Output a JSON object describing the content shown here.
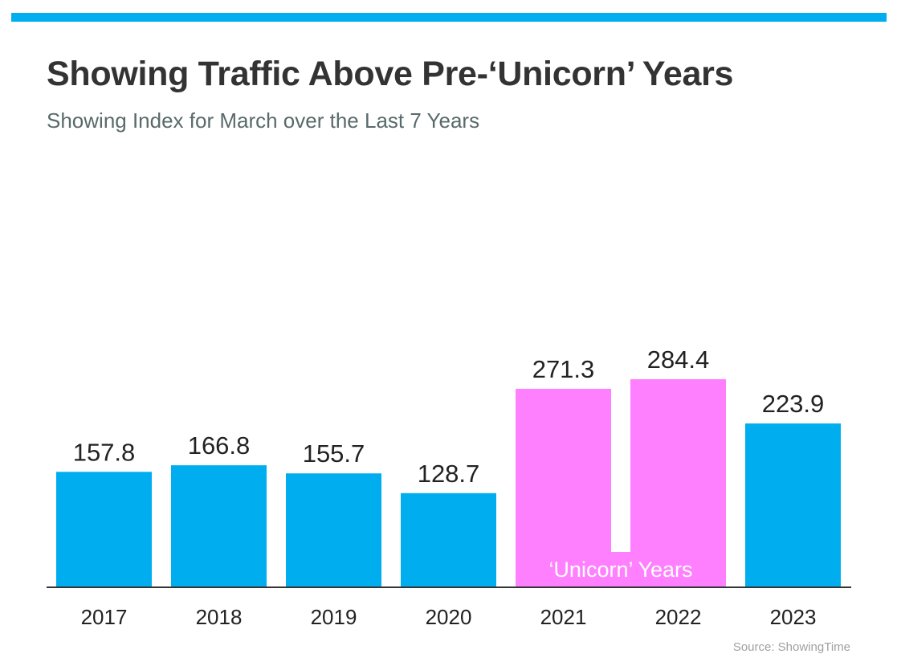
{
  "title": "Showing Traffic Above Pre-‘Unicorn’ Years",
  "subtitle": "Showing Index for March over the Last 7 Years",
  "source": "Source: ShowingTime",
  "colors": {
    "accent": "#00aeef",
    "highlight": "#ff80ff",
    "text": "#222222",
    "axis": "#333333"
  },
  "chart_data": {
    "type": "bar",
    "categories": [
      "2017",
      "2018",
      "2019",
      "2020",
      "2021",
      "2022",
      "2023"
    ],
    "values": [
      157.8,
      166.8,
      155.7,
      128.7,
      271.3,
      284.4,
      223.9
    ],
    "value_labels": [
      "157.8",
      "166.8",
      "155.7",
      "128.7",
      "271.3",
      "284.4",
      "223.9"
    ],
    "highlighted": [
      "2021",
      "2022"
    ],
    "highlight_label": "‘Unicorn’ Years",
    "ylim": [
      0,
      300
    ],
    "grid": false,
    "legend": "none"
  }
}
